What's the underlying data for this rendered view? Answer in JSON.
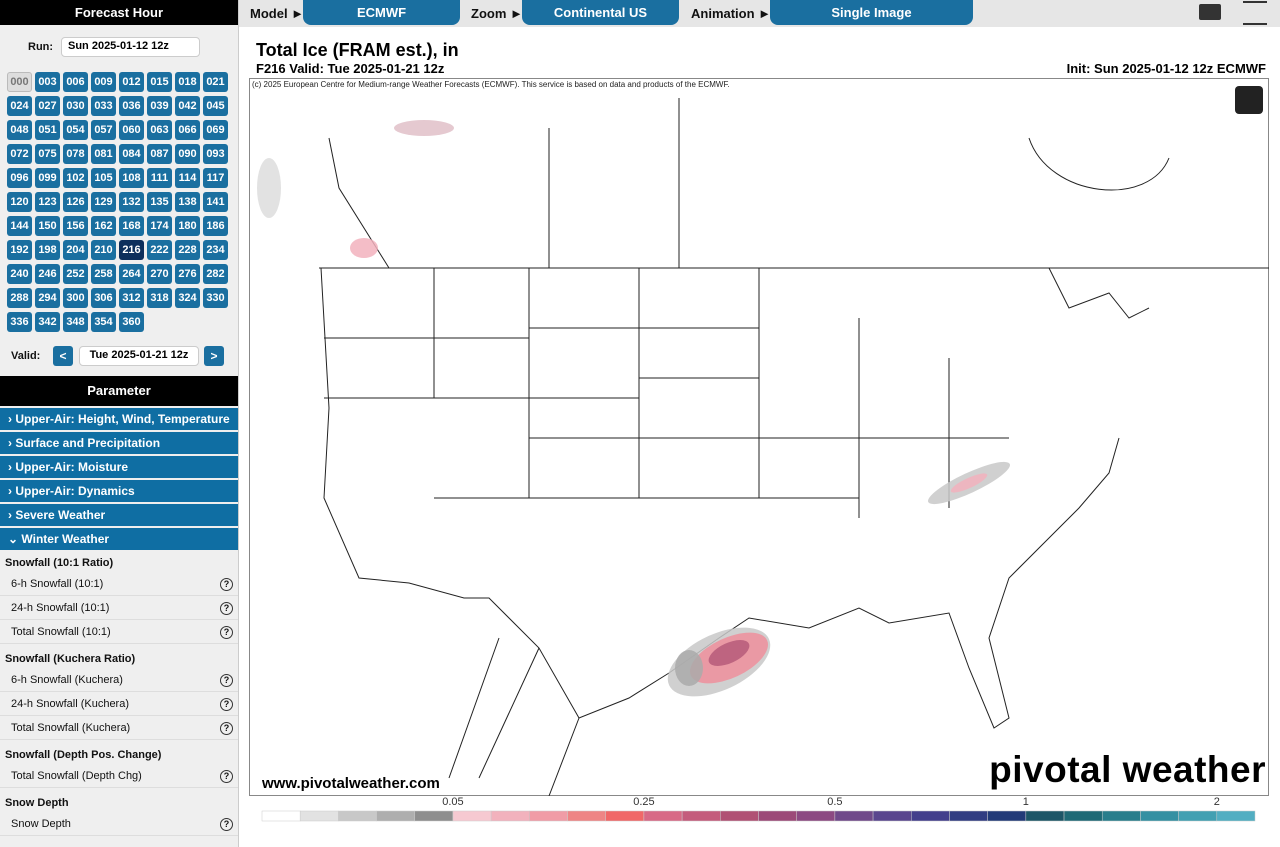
{
  "sidebar": {
    "forecast_hour_title": "Forecast Hour",
    "run_label": "Run:",
    "run_value": "Sun 2025-01-12 12z",
    "hours": [
      "000",
      "003",
      "006",
      "009",
      "012",
      "015",
      "018",
      "021",
      "024",
      "027",
      "030",
      "033",
      "036",
      "039",
      "042",
      "045",
      "048",
      "051",
      "054",
      "057",
      "060",
      "063",
      "066",
      "069",
      "072",
      "075",
      "078",
      "081",
      "084",
      "087",
      "090",
      "093",
      "096",
      "099",
      "102",
      "105",
      "108",
      "111",
      "114",
      "117",
      "120",
      "123",
      "126",
      "129",
      "132",
      "135",
      "138",
      "141",
      "144",
      "150",
      "156",
      "162",
      "168",
      "174",
      "180",
      "186",
      "192",
      "198",
      "204",
      "210",
      "216",
      "222",
      "228",
      "234",
      "240",
      "246",
      "252",
      "258",
      "264",
      "270",
      "276",
      "282",
      "288",
      "294",
      "300",
      "306",
      "312",
      "318",
      "324",
      "330",
      "336",
      "342",
      "348",
      "354",
      "360"
    ],
    "selected_hour_index": 60,
    "valid_label": "Valid:",
    "prev": "<",
    "valid_value": "Tue 2025-01-21 12z",
    "next": ">",
    "parameter_title": "Parameter",
    "categories": [
      "› Upper-Air: Height, Wind, Temperature",
      "› Surface and Precipitation",
      "› Upper-Air: Moisture",
      "› Upper-Air: Dynamics",
      "› Severe Weather",
      "⌄ Winter Weather"
    ],
    "help": "?",
    "groups": [
      {
        "title": "Snowfall (10:1 Ratio)",
        "items": [
          "6-h Snowfall (10:1)",
          "24-h Snowfall (10:1)",
          "Total Snowfall (10:1)"
        ]
      },
      {
        "title": "Snowfall (Kuchera Ratio)",
        "items": [
          "6-h Snowfall (Kuchera)",
          "24-h Snowfall (Kuchera)",
          "Total Snowfall (Kuchera)"
        ]
      },
      {
        "title": "Snowfall (Depth Pos. Change)",
        "items": [
          "Total Snowfall (Depth Chg)"
        ]
      },
      {
        "title": "Snow Depth",
        "items": [
          "Snow Depth"
        ]
      }
    ]
  },
  "topbar": {
    "model_label": "Model ►",
    "model": "ECMWF",
    "zoom_label": "Zoom ►",
    "zoom": "Continental US",
    "animation_label": "Animation ►",
    "animation": "Single Image"
  },
  "map": {
    "title": "Total Ice (FRAM est.), in",
    "valid": "F216 Valid: Tue 2025-01-21 12z",
    "init": "Init: Sun 2025-01-12 12z ECMWF",
    "credit": "(c) 2025 European Centre for Medium-range Weather Forecasts (ECMWF). This service is based on data and products of the ECMWF.",
    "url": "www.pivotalweather.com",
    "logo": "pivotal weather",
    "colorbar": {
      "colors": [
        "#ffffff",
        "#e2e2e2",
        "#c8c8c8",
        "#aeaeae",
        "#8e8e8e",
        "#f6c9d1",
        "#f2b2bd",
        "#f09ca6",
        "#ee8585",
        "#f06868",
        "#d86a86",
        "#c45c7c",
        "#b05174",
        "#9c4a78",
        "#8c4a82",
        "#704a8a",
        "#5a468e",
        "#433f8c",
        "#313d82",
        "#233b78",
        "#1d5667",
        "#1f6a76",
        "#297e8c",
        "#3490a2",
        "#42a0b2",
        "#52aec2"
      ],
      "ticks": [
        0.05,
        0.25,
        0.5,
        1,
        2
      ]
    }
  }
}
